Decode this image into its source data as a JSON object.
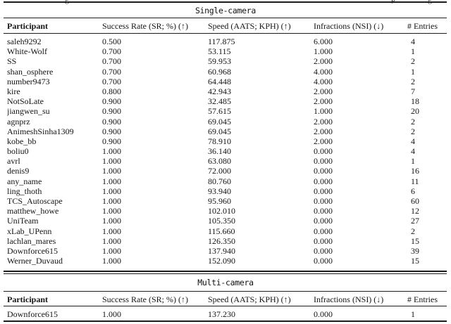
{
  "page": {
    "background": "#ffffff",
    "text_color": "#141414",
    "rule_color": "#1c1c1c"
  },
  "caption_fragments": {
    "left": "g",
    "mid": "p",
    "right": "g"
  },
  "table": {
    "columns": [
      "Participant",
      "Success Rate (SR; %) (↑)",
      "Speed (AATS; KPH) (↑)",
      "Infractions (NSI) (↓)",
      "# Entries"
    ],
    "sections": [
      {
        "title": "Single-camera",
        "rows": [
          [
            "saleh9292",
            "0.500",
            "117.875",
            "6.000",
            "4"
          ],
          [
            "White-Wolf",
            "0.700",
            "53.115",
            "1.000",
            "1"
          ],
          [
            "SS",
            "0.700",
            "59.953",
            "2.000",
            "2"
          ],
          [
            "shan_osphere",
            "0.700",
            "60.968",
            "4.000",
            "1"
          ],
          [
            "number9473",
            "0.700",
            "64.448",
            "4.000",
            "2"
          ],
          [
            "kire",
            "0.800",
            "42.943",
            "2.000",
            "7"
          ],
          [
            "NotSoLate",
            "0.900",
            "32.485",
            "2.000",
            "18"
          ],
          [
            "jiangwen_su",
            "0.900",
            "57.615",
            "1.000",
            "20"
          ],
          [
            "agnprz",
            "0.900",
            "69.045",
            "2.000",
            "2"
          ],
          [
            "AnimeshSinha1309",
            "0.900",
            "69.045",
            "2.000",
            "2"
          ],
          [
            "kobe_bb",
            "0.900",
            "78.910",
            "2.000",
            "4"
          ],
          [
            "boliu0",
            "1.000",
            "36.140",
            "0.000",
            "4"
          ],
          [
            "avrl",
            "1.000",
            "63.080",
            "0.000",
            "1"
          ],
          [
            "denis9",
            "1.000",
            "72.000",
            "0.000",
            "16"
          ],
          [
            "any_name",
            "1.000",
            "80.760",
            "0.000",
            "11"
          ],
          [
            "ling_thoth",
            "1.000",
            "93.940",
            "0.000",
            "6"
          ],
          [
            "TCS_Autoscape",
            "1.000",
            "95.960",
            "0.000",
            "60"
          ],
          [
            "matthew_howe",
            "1.000",
            "102.010",
            "0.000",
            "12"
          ],
          [
            "UniTeam",
            "1.000",
            "105.350",
            "0.000",
            "27"
          ],
          [
            "xLab_UPenn",
            "1.000",
            "115.660",
            "0.000",
            "2"
          ],
          [
            "lachlan_mares",
            "1.000",
            "126.350",
            "0.000",
            "15"
          ],
          [
            "Downforce615",
            "1.000",
            "137.940",
            "0.000",
            "39"
          ],
          [
            "Werner_Duvaud",
            "1.000",
            "152.090",
            "0.000",
            "15"
          ]
        ]
      },
      {
        "title": "Multi-camera",
        "rows": [
          [
            "Downforce615",
            "1.000",
            "137.230",
            "0.000",
            "1"
          ]
        ]
      }
    ]
  }
}
